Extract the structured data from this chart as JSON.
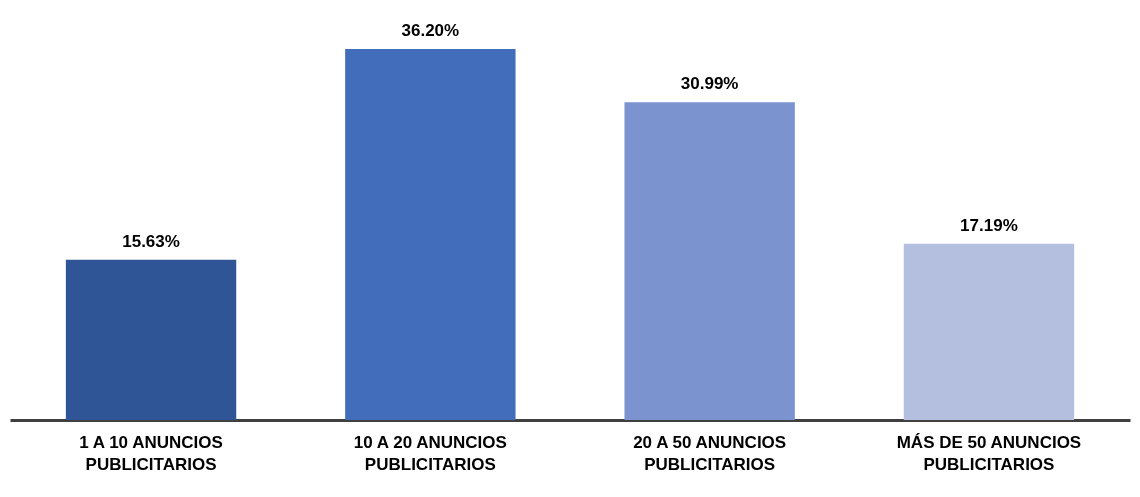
{
  "chart_data": {
    "type": "bar",
    "categories": [
      "1 A 10 ANUNCIOS PUBLICITARIOS",
      "10 A 20 ANUNCIOS PUBLICITARIOS",
      "20 A 50 ANUNCIOS PUBLICITARIOS",
      "MÁS DE 50 ANUNCIOS PUBLICITARIOS"
    ],
    "values": [
      15.63,
      36.2,
      30.99,
      17.19
    ],
    "value_labels": [
      "15.63%",
      "36.20%",
      "30.99%",
      "17.19%"
    ],
    "colors": [
      "#2f5597",
      "#416dba",
      "#7b94d0",
      "#b4bfe0"
    ],
    "grid": false,
    "tick_labels": "x"
  }
}
